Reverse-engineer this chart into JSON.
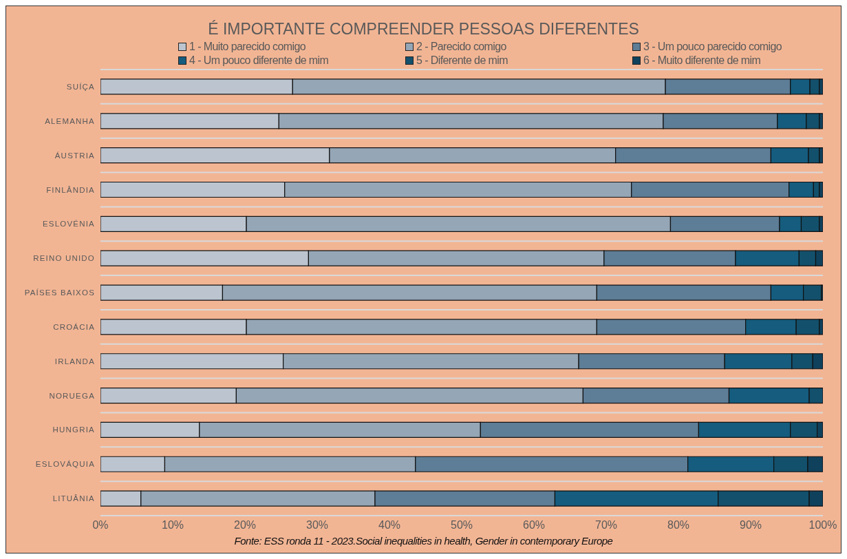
{
  "chart_data": {
    "type": "bar",
    "orientation": "horizontal",
    "stacked": true,
    "title": "É IMPORTANTE COMPREENDER PESSOAS DIFERENTES",
    "annotations": [
      "Fonte: ESS ronda 11 - 2023.Social inequalities in health, Gender in contemporary Europe"
    ],
    "categories": [
      "SUÍÇA",
      "ALEMANHA",
      "ÁUSTRIA",
      "FINLÂNDIA",
      "ESLOVÉNIA",
      "REINO UNIDO",
      "PAÍSES BAIXOS",
      "CROÁCIA",
      "IRLANDA",
      "NORUEGA",
      "HUNGRIA",
      "ESLOVÁQUIA",
      "LITUÂNIA"
    ],
    "series": [
      {
        "name": "1 - Muito parecido comigo",
        "color": "#bcc5cf",
        "values": [
          26.6,
          24.7,
          31.7,
          25.5,
          20.2,
          28.8,
          16.9,
          20.2,
          25.3,
          18.8,
          13.7,
          8.9,
          5.6
        ]
      },
      {
        "name": "2 - Parecido comigo",
        "color": "#95a6b6",
        "values": [
          51.6,
          53.2,
          39.6,
          48.0,
          58.7,
          40.9,
          51.8,
          48.5,
          40.9,
          48.0,
          38.9,
          34.7,
          32.4
        ]
      },
      {
        "name": "3 - Um pouco parecido comigo",
        "color": "#5e7d96",
        "values": [
          17.3,
          15.8,
          21.5,
          21.8,
          15.1,
          18.2,
          24.1,
          20.6,
          20.2,
          20.2,
          30.2,
          37.7,
          24.9
        ]
      },
      {
        "name": "4 - Um pouco diferente de mim",
        "color": "#155c7e",
        "values": [
          2.7,
          4.0,
          5.2,
          3.4,
          3.0,
          8.8,
          4.5,
          7.0,
          9.3,
          11.1,
          12.7,
          11.9,
          22.6
        ]
      },
      {
        "name": "5 - Diferente de mim",
        "color": "#13506c",
        "values": [
          1.3,
          1.8,
          1.5,
          0.8,
          2.5,
          2.3,
          2.5,
          3.2,
          2.9,
          1.9,
          3.7,
          4.7,
          12.6
        ]
      },
      {
        "name": "6 - Muito diferente de mim",
        "color": "#0f415c",
        "values": [
          0.5,
          0.5,
          0.5,
          0.5,
          0.5,
          1.0,
          0.2,
          0.5,
          1.4,
          0,
          0.8,
          2.1,
          1.9
        ]
      }
    ],
    "xlim": [
      0,
      100
    ],
    "xticks": [
      {
        "value": 0,
        "label": "0%"
      },
      {
        "value": 10,
        "label": "10%"
      },
      {
        "value": 20,
        "label": "20%"
      },
      {
        "value": 30,
        "label": "30%"
      },
      {
        "value": 40,
        "label": "40%"
      },
      {
        "value": 50,
        "label": "50%"
      },
      {
        "value": 60,
        "label": "60%"
      },
      {
        "value": 70,
        "label": "70%"
      },
      {
        "value": 80,
        "label": "80%"
      },
      {
        "value": 90,
        "label": "90%"
      },
      {
        "value": 100,
        "label": "100%"
      }
    ],
    "grid": "y",
    "legend": "top"
  }
}
